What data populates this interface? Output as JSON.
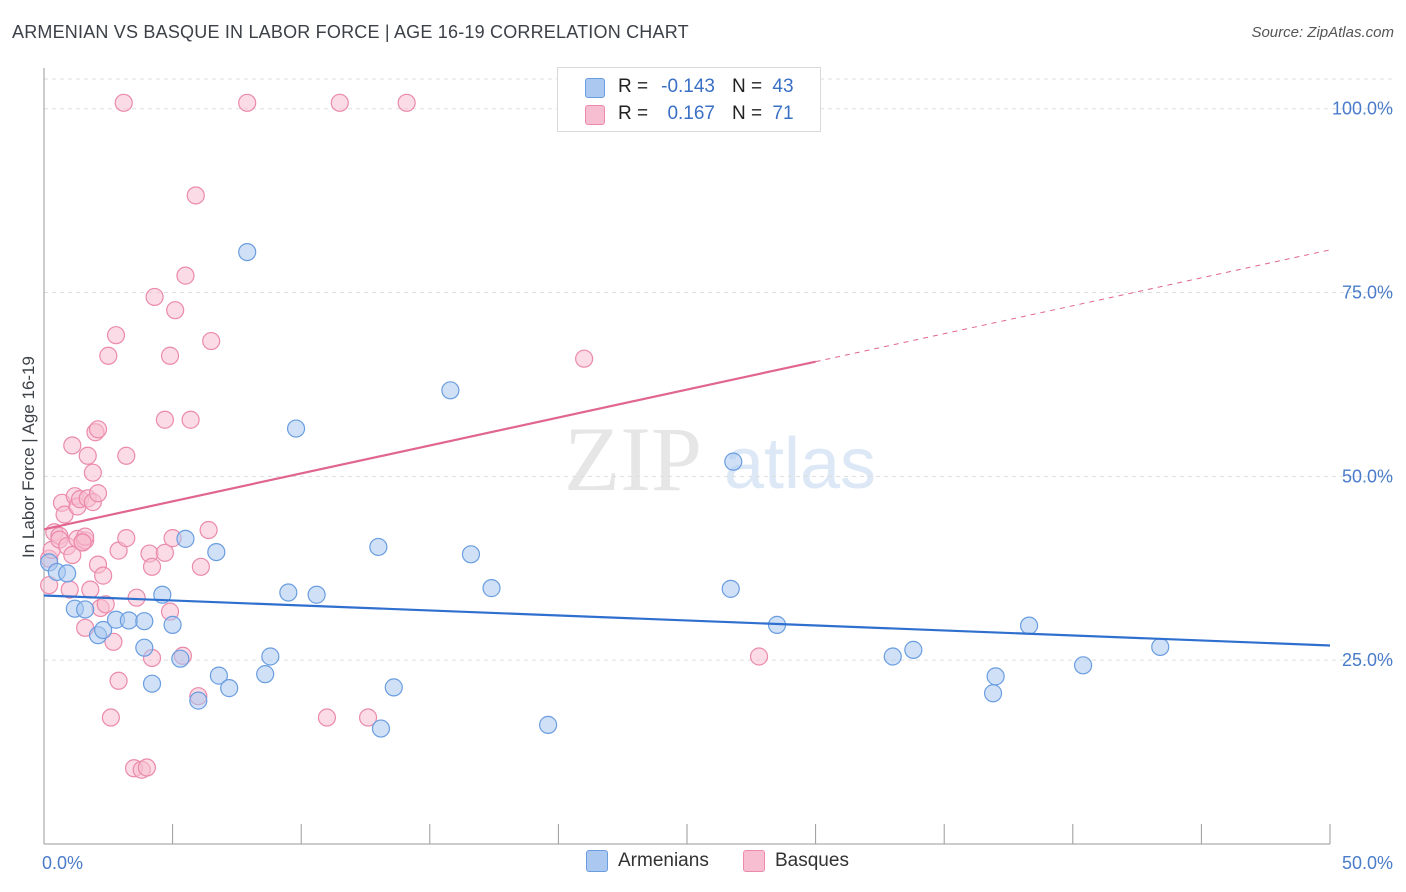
{
  "title": "ARMENIAN VS BASQUE IN LABOR FORCE | AGE 16-19 CORRELATION CHART",
  "source": "Source: ZipAtlas.com",
  "watermark": {
    "zip": "ZIP",
    "atlas": "atlas"
  },
  "colors": {
    "armenian_fill": "#aac8f0",
    "armenian_stroke": "#6a9de0",
    "armenian_line": "#2f6fce",
    "basque_fill": "#f7bdd0",
    "basque_stroke": "#eb8aab",
    "basque_line": "#e06690",
    "grid": "#dddddd",
    "axis": "#9a9a9a",
    "tick_label": "#4a7cc9"
  },
  "legend": {
    "rows": [
      {
        "r_label": "R =",
        "r_value": "-0.143",
        "n_label": "N =",
        "n_value": "43"
      },
      {
        "r_label": "R =",
        "r_value": "0.167",
        "n_label": "N =",
        "n_value": "71"
      }
    ]
  },
  "chart_data": {
    "type": "scatter",
    "title": "ARMENIAN VS BASQUE IN LABOR FORCE | AGE 16-19 CORRELATION CHART",
    "xlabel": "",
    "ylabel": "In Labor Force | Age 16-19",
    "xlim": [
      0,
      50
    ],
    "ylim": [
      0,
      102
    ],
    "x_tick_labels": [
      "0.0%",
      "50.0%"
    ],
    "y_ticks": [
      {
        "value": 25,
        "label": "25.0%"
      },
      {
        "value": 50,
        "label": "50.0%"
      },
      {
        "value": 75,
        "label": "75.0%"
      },
      {
        "value": 100,
        "label": "100.0%"
      }
    ],
    "grid": true,
    "series": [
      {
        "name": "Armenians",
        "r": -0.143,
        "n": 43,
        "trend": {
          "x0": 0,
          "y0": 33.8,
          "x1": 50,
          "y1": 27.0
        },
        "points": [
          [
            0.2,
            38.3
          ],
          [
            0.5,
            37.0
          ],
          [
            0.9,
            36.8
          ],
          [
            1.2,
            32.0
          ],
          [
            1.6,
            31.9
          ],
          [
            2.1,
            28.4
          ],
          [
            2.3,
            29.1
          ],
          [
            2.8,
            30.5
          ],
          [
            3.3,
            30.4
          ],
          [
            3.9,
            30.3
          ],
          [
            3.9,
            26.7
          ],
          [
            4.2,
            21.8
          ],
          [
            4.6,
            33.9
          ],
          [
            5.0,
            29.8
          ],
          [
            5.3,
            25.2
          ],
          [
            5.5,
            41.5
          ],
          [
            6.0,
            19.5
          ],
          [
            6.7,
            39.7
          ],
          [
            6.8,
            22.9
          ],
          [
            7.2,
            21.2
          ],
          [
            7.9,
            80.5
          ],
          [
            8.6,
            23.1
          ],
          [
            8.8,
            25.5
          ],
          [
            9.5,
            34.2
          ],
          [
            9.8,
            56.5
          ],
          [
            10.6,
            33.9
          ],
          [
            13.0,
            40.4
          ],
          [
            13.1,
            15.7
          ],
          [
            13.6,
            21.3
          ],
          [
            15.8,
            61.7
          ],
          [
            16.6,
            39.4
          ],
          [
            17.4,
            34.8
          ],
          [
            19.6,
            16.2
          ],
          [
            26.7,
            34.7
          ],
          [
            26.8,
            52.0
          ],
          [
            28.5,
            29.8
          ],
          [
            33.0,
            25.5
          ],
          [
            33.8,
            26.4
          ],
          [
            36.9,
            20.5
          ],
          [
            37.0,
            22.8
          ],
          [
            38.3,
            29.7
          ],
          [
            40.4,
            24.3
          ],
          [
            43.4,
            26.8
          ]
        ]
      },
      {
        "name": "Basques",
        "r": 0.167,
        "n": 71,
        "trend": {
          "x0": 0,
          "y0": 42.8,
          "x1": 30,
          "y1": 65.6
        },
        "trend_extension": {
          "x0": 30,
          "y0": 65.6,
          "x1": 50,
          "y1": 80.8
        },
        "points": [
          [
            0.2,
            38.8
          ],
          [
            0.2,
            35.2
          ],
          [
            0.3,
            40.0
          ],
          [
            0.4,
            42.4
          ],
          [
            0.6,
            41.9
          ],
          [
            0.6,
            41.4
          ],
          [
            0.7,
            46.4
          ],
          [
            0.8,
            44.8
          ],
          [
            0.9,
            40.5
          ],
          [
            1.0,
            34.6
          ],
          [
            1.1,
            39.3
          ],
          [
            1.1,
            54.2
          ],
          [
            1.2,
            47.3
          ],
          [
            1.3,
            45.9
          ],
          [
            1.3,
            41.5
          ],
          [
            1.4,
            46.9
          ],
          [
            1.5,
            41.1
          ],
          [
            1.6,
            29.4
          ],
          [
            1.6,
            41.3
          ],
          [
            1.6,
            41.8
          ],
          [
            1.7,
            52.8
          ],
          [
            1.7,
            47.0
          ],
          [
            1.8,
            34.6
          ],
          [
            1.9,
            46.5
          ],
          [
            1.9,
            50.5
          ],
          [
            2.0,
            56.0
          ],
          [
            2.1,
            38.0
          ],
          [
            2.1,
            47.7
          ],
          [
            2.1,
            56.4
          ],
          [
            2.2,
            32.1
          ],
          [
            2.3,
            36.5
          ],
          [
            2.4,
            32.6
          ],
          [
            2.5,
            66.4
          ],
          [
            2.6,
            17.2
          ],
          [
            2.7,
            27.5
          ],
          [
            2.8,
            69.2
          ],
          [
            2.9,
            39.9
          ],
          [
            2.9,
            22.2
          ],
          [
            3.1,
            100.8
          ],
          [
            3.2,
            52.8
          ],
          [
            3.2,
            41.6
          ],
          [
            3.5,
            10.3
          ],
          [
            3.6,
            33.5
          ],
          [
            3.8,
            10.1
          ],
          [
            4.0,
            10.4
          ],
          [
            4.1,
            39.5
          ],
          [
            4.2,
            37.7
          ],
          [
            4.2,
            25.3
          ],
          [
            4.3,
            74.4
          ],
          [
            4.7,
            57.7
          ],
          [
            4.7,
            39.6
          ],
          [
            4.9,
            31.6
          ],
          [
            4.9,
            66.4
          ],
          [
            5.0,
            41.6
          ],
          [
            5.1,
            72.6
          ],
          [
            5.4,
            25.6
          ],
          [
            5.5,
            77.3
          ],
          [
            5.7,
            57.7
          ],
          [
            5.9,
            88.2
          ],
          [
            6.0,
            20.1
          ],
          [
            6.1,
            37.7
          ],
          [
            6.4,
            42.7
          ],
          [
            6.5,
            68.4
          ],
          [
            7.9,
            100.8
          ],
          [
            11.0,
            17.2
          ],
          [
            11.5,
            100.8
          ],
          [
            12.6,
            17.2
          ],
          [
            14.1,
            100.8
          ],
          [
            21.0,
            66.0
          ],
          [
            27.8,
            25.5
          ],
          [
            1.5,
            41.0
          ]
        ]
      }
    ]
  },
  "bottom_legend": [
    {
      "label": "Armenians"
    },
    {
      "label": "Basques"
    }
  ]
}
